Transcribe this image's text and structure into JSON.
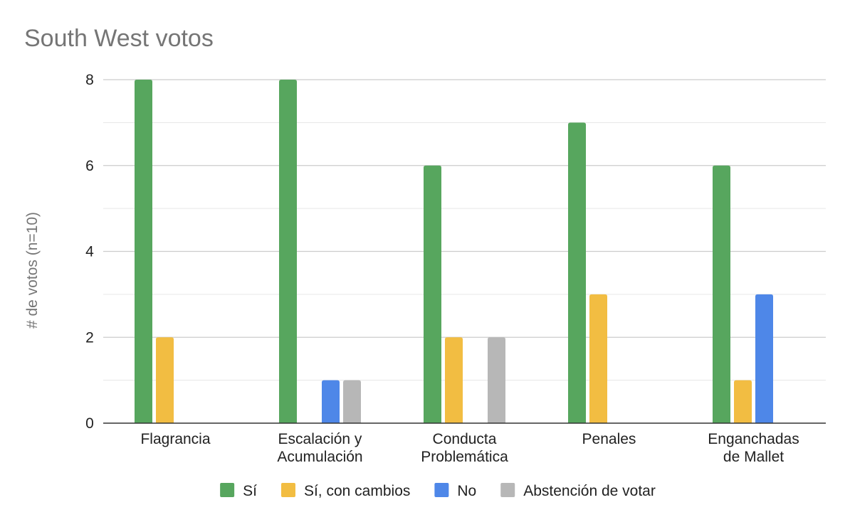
{
  "chart_data": {
    "type": "bar",
    "title": "South West votos",
    "ylabel": "# de votos (n=10)",
    "xlabel": "",
    "ylim": [
      0,
      8
    ],
    "yticks": [
      0,
      2,
      4,
      6,
      8
    ],
    "grid": true,
    "legend_position": "bottom",
    "categories": [
      [
        "Flagrancia"
      ],
      [
        "Escalación y",
        "Acumulación"
      ],
      [
        "Conducta",
        "Problemática"
      ],
      [
        "Penales"
      ],
      [
        "Enganchadas",
        "de Mallet"
      ]
    ],
    "series": [
      {
        "name": "Sí",
        "color": "#57a65e",
        "values": [
          8,
          8,
          6,
          7,
          6
        ]
      },
      {
        "name": "Sí, con cambios",
        "color": "#f2bd42",
        "values": [
          2,
          0,
          2,
          3,
          1
        ]
      },
      {
        "name": "No",
        "color": "#4e87e8",
        "values": [
          0,
          1,
          0,
          0,
          3
        ]
      },
      {
        "name": "Abstención de votar",
        "color": "#b7b7b7",
        "values": [
          0,
          1,
          2,
          0,
          0
        ]
      }
    ]
  }
}
